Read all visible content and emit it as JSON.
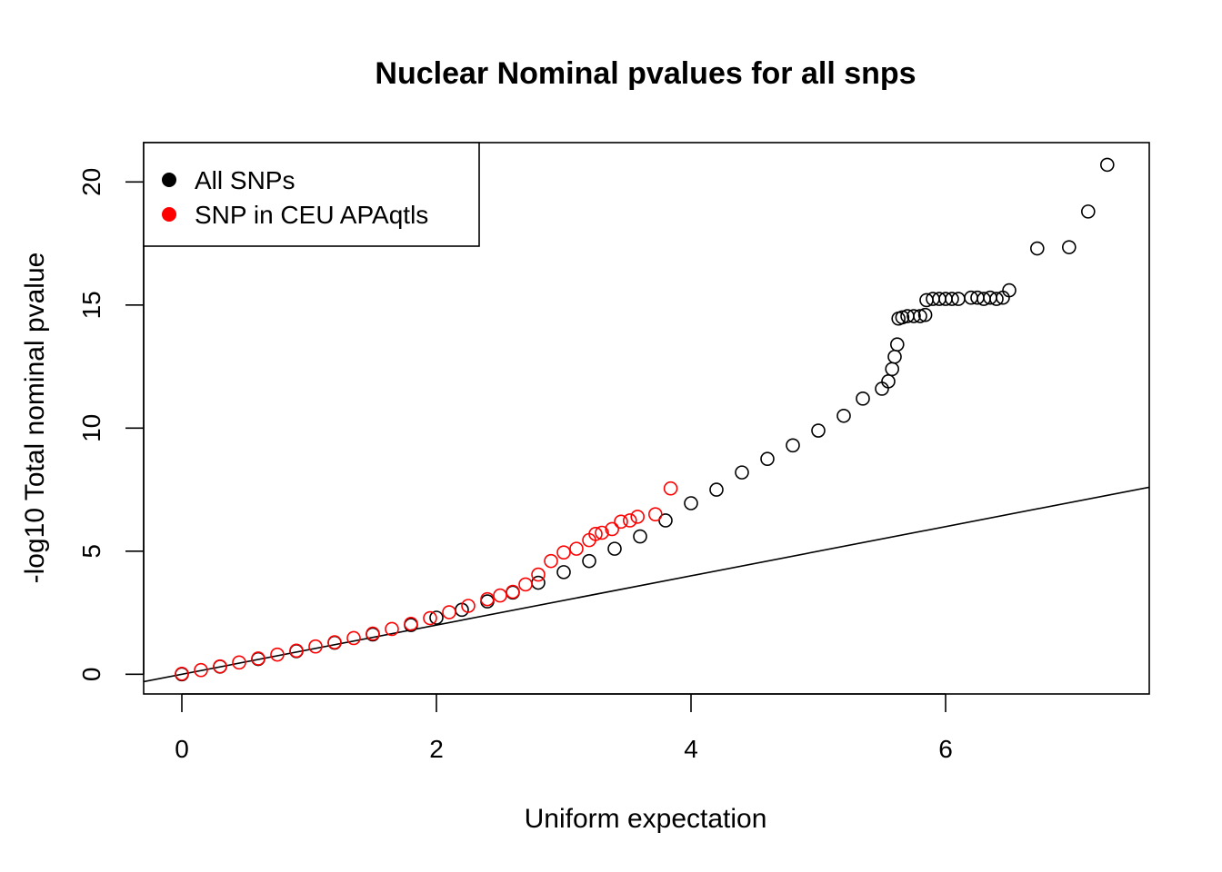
{
  "chart_data": {
    "type": "scatter",
    "title": "Nuclear Nominal pvalues for all snps",
    "xlabel": "Uniform expectation",
    "ylabel": "-log10 Total nominal pvalue",
    "xlim": [
      -0.3,
      7.6
    ],
    "ylim": [
      -0.8,
      21.6
    ],
    "x_ticks": [
      0,
      2,
      4,
      6
    ],
    "y_ticks": [
      0,
      5,
      10,
      15,
      20
    ],
    "grid": false,
    "legend": {
      "placement": "top-left",
      "entries": [
        {
          "label": "All SNPs",
          "color": "#000000"
        },
        {
          "label": "SNP in CEU APAqtls",
          "color": "#ff0000"
        }
      ]
    },
    "reference_line": {
      "label": "y = x",
      "slope": 1,
      "intercept": 0
    },
    "series": [
      {
        "name": "All SNPs",
        "color": "#000000",
        "marker": "open-circle",
        "points": [
          [
            0.0,
            0.0
          ],
          [
            0.3,
            0.31
          ],
          [
            0.6,
            0.62
          ],
          [
            0.9,
            0.94
          ],
          [
            1.2,
            1.28
          ],
          [
            1.5,
            1.62
          ],
          [
            1.8,
            2.0
          ],
          [
            2.0,
            2.3
          ],
          [
            2.2,
            2.62
          ],
          [
            2.4,
            2.96
          ],
          [
            2.6,
            3.32
          ],
          [
            2.8,
            3.72
          ],
          [
            3.0,
            4.15
          ],
          [
            3.2,
            4.6
          ],
          [
            3.4,
            5.1
          ],
          [
            3.6,
            5.6
          ],
          [
            3.8,
            6.25
          ],
          [
            4.0,
            6.95
          ],
          [
            4.2,
            7.5
          ],
          [
            4.4,
            8.2
          ],
          [
            4.6,
            8.75
          ],
          [
            4.8,
            9.3
          ],
          [
            5.0,
            9.9
          ],
          [
            5.2,
            10.5
          ],
          [
            5.35,
            11.2
          ],
          [
            5.5,
            11.6
          ],
          [
            5.55,
            11.9
          ],
          [
            5.58,
            12.4
          ],
          [
            5.6,
            12.9
          ],
          [
            5.62,
            13.4
          ],
          [
            5.63,
            14.45
          ],
          [
            5.66,
            14.5
          ],
          [
            5.7,
            14.55
          ],
          [
            5.75,
            14.55
          ],
          [
            5.8,
            14.55
          ],
          [
            5.84,
            14.6
          ],
          [
            5.85,
            15.2
          ],
          [
            5.9,
            15.25
          ],
          [
            5.95,
            15.25
          ],
          [
            6.0,
            15.25
          ],
          [
            6.05,
            15.25
          ],
          [
            6.1,
            15.25
          ],
          [
            6.2,
            15.3
          ],
          [
            6.25,
            15.3
          ],
          [
            6.3,
            15.25
          ],
          [
            6.35,
            15.3
          ],
          [
            6.4,
            15.25
          ],
          [
            6.45,
            15.3
          ],
          [
            6.5,
            15.6
          ],
          [
            6.72,
            17.3
          ],
          [
            6.97,
            17.35
          ],
          [
            7.12,
            18.8
          ],
          [
            7.27,
            20.7
          ]
        ]
      },
      {
        "name": "SNP in CEU APAqtls",
        "color": "#ff0000",
        "marker": "open-circle",
        "points": [
          [
            0.0,
            0.02
          ],
          [
            0.15,
            0.17
          ],
          [
            0.3,
            0.32
          ],
          [
            0.45,
            0.48
          ],
          [
            0.6,
            0.64
          ],
          [
            0.75,
            0.8
          ],
          [
            0.9,
            0.96
          ],
          [
            1.05,
            1.13
          ],
          [
            1.2,
            1.3
          ],
          [
            1.35,
            1.47
          ],
          [
            1.5,
            1.65
          ],
          [
            1.65,
            1.84
          ],
          [
            1.8,
            2.05
          ],
          [
            1.95,
            2.28
          ],
          [
            2.1,
            2.52
          ],
          [
            2.25,
            2.78
          ],
          [
            2.4,
            3.05
          ],
          [
            2.5,
            3.2
          ],
          [
            2.6,
            3.35
          ],
          [
            2.7,
            3.65
          ],
          [
            2.8,
            4.05
          ],
          [
            2.9,
            4.6
          ],
          [
            3.0,
            4.95
          ],
          [
            3.1,
            5.1
          ],
          [
            3.2,
            5.45
          ],
          [
            3.25,
            5.7
          ],
          [
            3.3,
            5.75
          ],
          [
            3.38,
            5.9
          ],
          [
            3.45,
            6.2
          ],
          [
            3.52,
            6.25
          ],
          [
            3.58,
            6.4
          ],
          [
            3.72,
            6.5
          ],
          [
            3.84,
            7.55
          ]
        ]
      }
    ]
  }
}
